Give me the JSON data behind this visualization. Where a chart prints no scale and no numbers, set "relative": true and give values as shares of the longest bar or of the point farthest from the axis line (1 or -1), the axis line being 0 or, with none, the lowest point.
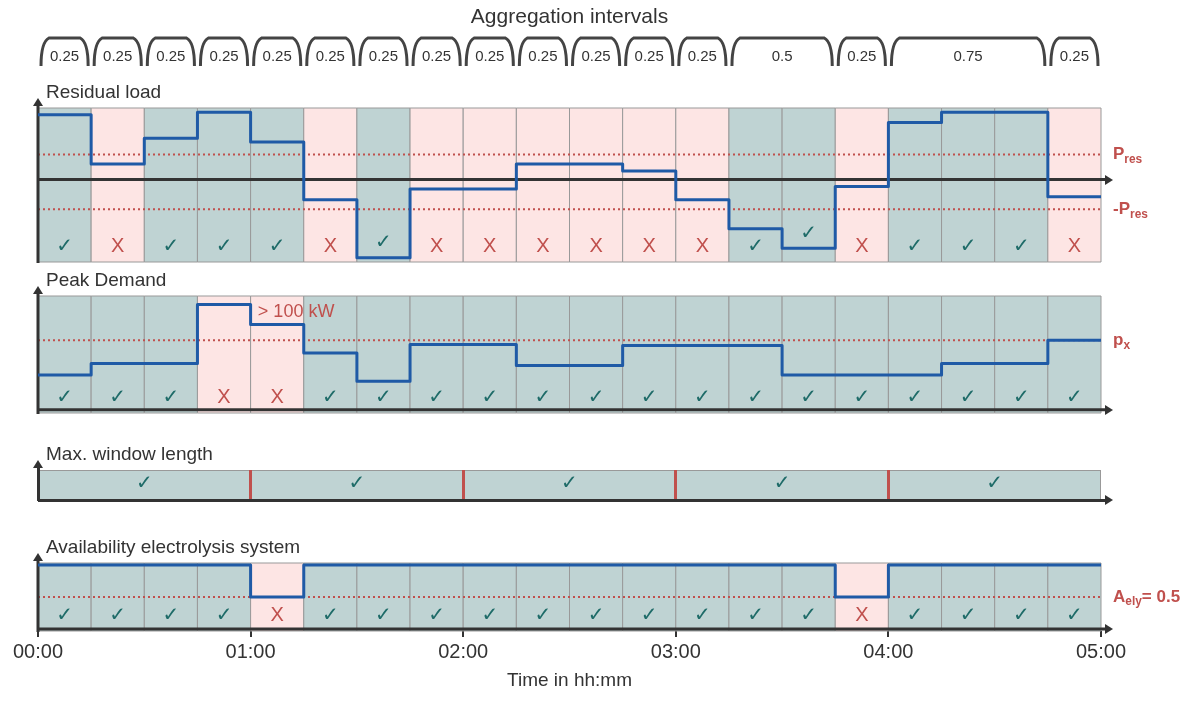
{
  "chart_data": [
    {
      "type": "other",
      "title": "Aggregation intervals",
      "values": [
        0.25,
        0.25,
        0.25,
        0.25,
        0.25,
        0.25,
        0.25,
        0.25,
        0.25,
        0.25,
        0.25,
        0.25,
        0.25,
        0.5,
        0.25,
        0.75,
        0.25
      ],
      "data_labels": true
    },
    {
      "type": "step",
      "title": "Residual load",
      "relative": true,
      "xlim": [
        0,
        5
      ],
      "tick_labels": false,
      "x": [
        0,
        0.25,
        0.5,
        0.75,
        1,
        1.25,
        1.5,
        1.75,
        2,
        2.25,
        2.5,
        2.75,
        3,
        3.25,
        3.5,
        3.75,
        4,
        4.25,
        4.5,
        4.75,
        5
      ],
      "series": [
        {
          "color": "#1f5aa6",
          "values": [
            0.83,
            0.2,
            0.53,
            0.86,
            0.48,
            -0.26,
            -1,
            -0.12,
            -0.12,
            0.2,
            0.2,
            0.11,
            -0.26,
            -0.63,
            -0.88,
            -0.09,
            0.73,
            0.86,
            0.86,
            -0.22,
            -0.22
          ]
        }
      ],
      "ref_lines": [
        {
          "axis": "y",
          "value": 0.32,
          "label": "P$_{res}$",
          "color": "#c0504d",
          "line_style": "dotted"
        },
        {
          "axis": "y",
          "value": -0.38,
          "label": "-P$_{res}$",
          "color": "#c0504d",
          "line_style": "dotted"
        }
      ],
      "bands": [
        {
          "axis": "x",
          "from": 0,
          "to": 0.25,
          "label": "✓",
          "color": "#bfd3d3"
        },
        {
          "axis": "x",
          "from": 0.25,
          "to": 0.5,
          "label": "X",
          "color": "#fde5e4"
        },
        {
          "axis": "x",
          "from": 0.5,
          "to": 0.75,
          "label": "✓",
          "color": "#bfd3d3"
        },
        {
          "axis": "x",
          "from": 0.75,
          "to": 1,
          "label": "✓",
          "color": "#bfd3d3"
        },
        {
          "axis": "x",
          "from": 1,
          "to": 1.25,
          "label": "✓",
          "color": "#bfd3d3"
        },
        {
          "axis": "x",
          "from": 1.25,
          "to": 1.5,
          "label": "X",
          "color": "#fde5e4"
        },
        {
          "axis": "x",
          "from": 1.5,
          "to": 1.75,
          "label": "✓",
          "color": "#bfd3d3"
        },
        {
          "axis": "x",
          "from": 1.75,
          "to": 2,
          "label": "X",
          "color": "#fde5e4"
        },
        {
          "axis": "x",
          "from": 2,
          "to": 2.25,
          "label": "X",
          "color": "#fde5e4"
        },
        {
          "axis": "x",
          "from": 2.25,
          "to": 2.5,
          "label": "X",
          "color": "#fde5e4"
        },
        {
          "axis": "x",
          "from": 2.5,
          "to": 2.75,
          "label": "X",
          "color": "#fde5e4"
        },
        {
          "axis": "x",
          "from": 2.75,
          "to": 3,
          "label": "X",
          "color": "#fde5e4"
        },
        {
          "axis": "x",
          "from": 3,
          "to": 3.25,
          "label": "X",
          "color": "#fde5e4"
        },
        {
          "axis": "x",
          "from": 3.25,
          "to": 3.5,
          "label": "✓",
          "color": "#bfd3d3"
        },
        {
          "axis": "x",
          "from": 3.5,
          "to": 3.75,
          "label": "✓",
          "color": "#bfd3d3"
        },
        {
          "axis": "x",
          "from": 3.75,
          "to": 4,
          "label": "X",
          "color": "#fde5e4"
        },
        {
          "axis": "x",
          "from": 4,
          "to": 4.25,
          "label": "✓",
          "color": "#bfd3d3"
        },
        {
          "axis": "x",
          "from": 4.25,
          "to": 4.5,
          "label": "✓",
          "color": "#bfd3d3"
        },
        {
          "axis": "x",
          "from": 4.5,
          "to": 4.75,
          "label": "✓",
          "color": "#bfd3d3"
        },
        {
          "axis": "x",
          "from": 4.75,
          "to": 5,
          "label": "X",
          "color": "#fde5e4"
        }
      ]
    },
    {
      "type": "step",
      "title": "Peak Demand",
      "relative": true,
      "xlim": [
        0,
        5
      ],
      "tick_labels": false,
      "x": [
        0,
        0.25,
        0.5,
        0.75,
        1,
        1.25,
        1.5,
        1.75,
        2,
        2.25,
        2.5,
        2.75,
        3,
        3.25,
        3.5,
        3.75,
        4,
        4.25,
        4.5,
        4.75,
        5
      ],
      "series": [
        {
          "color": "#1f5aa6",
          "values": [
            0.33,
            0.44,
            0.44,
            1,
            0.81,
            0.54,
            0.27,
            0.62,
            0.62,
            0.42,
            0.42,
            0.61,
            0.61,
            0.61,
            0.33,
            0.33,
            0.33,
            0.44,
            0.44,
            0.66,
            0.66
          ]
        }
      ],
      "ref_lines": [
        {
          "axis": "y",
          "value": 0.66,
          "label": "p$_{x}$",
          "color": "#c0504d",
          "line_style": "dotted"
        }
      ],
      "annotations": [
        {
          "text": "> 100 kW",
          "x": 1.02,
          "y": 0.93
        }
      ],
      "bands": [
        {
          "axis": "x",
          "from": 0,
          "to": 0.25,
          "label": "✓",
          "color": "#bfd3d3"
        },
        {
          "axis": "x",
          "from": 0.25,
          "to": 0.5,
          "label": "✓",
          "color": "#bfd3d3"
        },
        {
          "axis": "x",
          "from": 0.5,
          "to": 0.75,
          "label": "✓",
          "color": "#bfd3d3"
        },
        {
          "axis": "x",
          "from": 0.75,
          "to": 1,
          "label": "X",
          "color": "#fde5e4"
        },
        {
          "axis": "x",
          "from": 1,
          "to": 1.25,
          "label": "X",
          "color": "#fde5e4"
        },
        {
          "axis": "x",
          "from": 1.25,
          "to": 1.5,
          "label": "✓",
          "color": "#bfd3d3"
        },
        {
          "axis": "x",
          "from": 1.5,
          "to": 1.75,
          "label": "✓",
          "color": "#bfd3d3"
        },
        {
          "axis": "x",
          "from": 1.75,
          "to": 2,
          "label": "✓",
          "color": "#bfd3d3"
        },
        {
          "axis": "x",
          "from": 2,
          "to": 2.25,
          "label": "✓",
          "color": "#bfd3d3"
        },
        {
          "axis": "x",
          "from": 2.25,
          "to": 2.5,
          "label": "✓",
          "color": "#bfd3d3"
        },
        {
          "axis": "x",
          "from": 2.5,
          "to": 2.75,
          "label": "✓",
          "color": "#bfd3d3"
        },
        {
          "axis": "x",
          "from": 2.75,
          "to": 3,
          "label": "✓",
          "color": "#bfd3d3"
        },
        {
          "axis": "x",
          "from": 3,
          "to": 3.25,
          "label": "✓",
          "color": "#bfd3d3"
        },
        {
          "axis": "x",
          "from": 3.25,
          "to": 3.5,
          "label": "✓",
          "color": "#bfd3d3"
        },
        {
          "axis": "x",
          "from": 3.5,
          "to": 3.75,
          "label": "✓",
          "color": "#bfd3d3"
        },
        {
          "axis": "x",
          "from": 3.75,
          "to": 4,
          "label": "✓",
          "color": "#bfd3d3"
        },
        {
          "axis": "x",
          "from": 4,
          "to": 4.25,
          "label": "✓",
          "color": "#bfd3d3"
        },
        {
          "axis": "x",
          "from": 4.25,
          "to": 4.5,
          "label": "✓",
          "color": "#bfd3d3"
        },
        {
          "axis": "x",
          "from": 4.5,
          "to": 4.75,
          "label": "✓",
          "color": "#bfd3d3"
        },
        {
          "axis": "x",
          "from": 4.75,
          "to": 5,
          "label": "✓",
          "color": "#bfd3d3"
        }
      ]
    },
    {
      "type": "other",
      "title": "Max. window length",
      "annotations": [
        "✓",
        "✓",
        "✓",
        "✓",
        "✓"
      ]
    },
    {
      "type": "step",
      "title": "Availability electrolysis system",
      "xlabel": "Time in hh:mm",
      "relative": true,
      "xlim": [
        0,
        5
      ],
      "tick_labels": "x",
      "xticks": [
        {
          "value": 0,
          "label": "00:00"
        },
        {
          "value": 1,
          "label": "01:00"
        },
        {
          "value": 2,
          "label": "02:00"
        },
        {
          "value": 3,
          "label": "03:00"
        },
        {
          "value": 4,
          "label": "04:00"
        },
        {
          "value": 5,
          "label": "05:00"
        }
      ],
      "x": [
        0,
        0.25,
        0.5,
        0.75,
        1,
        1.25,
        1.5,
        1.75,
        2,
        2.25,
        2.5,
        2.75,
        3,
        3.25,
        3.5,
        3.75,
        4,
        4.25,
        4.5,
        4.75,
        5
      ],
      "series": [
        {
          "color": "#1f5aa6",
          "values": [
            1,
            1,
            1,
            1,
            0.5,
            1,
            1,
            1,
            1,
            1,
            1,
            1,
            1,
            1,
            1,
            0.5,
            1,
            1,
            1,
            1,
            1
          ]
        }
      ],
      "ref_lines": [
        {
          "axis": "y",
          "value": 0.5,
          "label": "A$_{ely}$= 0.5",
          "color": "#c0504d",
          "line_style": "dotted"
        }
      ],
      "bands": [
        {
          "axis": "x",
          "from": 0,
          "to": 0.25,
          "label": "✓",
          "color": "#bfd3d3"
        },
        {
          "axis": "x",
          "from": 0.25,
          "to": 0.5,
          "label": "✓",
          "color": "#bfd3d3"
        },
        {
          "axis": "x",
          "from": 0.5,
          "to": 0.75,
          "label": "✓",
          "color": "#bfd3d3"
        },
        {
          "axis": "x",
          "from": 0.75,
          "to": 1,
          "label": "✓",
          "color": "#bfd3d3"
        },
        {
          "axis": "x",
          "from": 1,
          "to": 1.25,
          "label": "X",
          "color": "#fde5e4"
        },
        {
          "axis": "x",
          "from": 1.25,
          "to": 1.5,
          "label": "✓",
          "color": "#bfd3d3"
        },
        {
          "axis": "x",
          "from": 1.5,
          "to": 1.75,
          "label": "✓",
          "color": "#bfd3d3"
        },
        {
          "axis": "x",
          "from": 1.75,
          "to": 2,
          "label": "✓",
          "color": "#bfd3d3"
        },
        {
          "axis": "x",
          "from": 2,
          "to": 2.25,
          "label": "✓",
          "color": "#bfd3d3"
        },
        {
          "axis": "x",
          "from": 2.25,
          "to": 2.5,
          "label": "✓",
          "color": "#bfd3d3"
        },
        {
          "axis": "x",
          "from": 2.5,
          "to": 2.75,
          "label": "✓",
          "color": "#bfd3d3"
        },
        {
          "axis": "x",
          "from": 2.75,
          "to": 3,
          "label": "✓",
          "color": "#bfd3d3"
        },
        {
          "axis": "x",
          "from": 3,
          "to": 3.25,
          "label": "✓",
          "color": "#bfd3d3"
        },
        {
          "axis": "x",
          "from": 3.25,
          "to": 3.5,
          "label": "✓",
          "color": "#bfd3d3"
        },
        {
          "axis": "x",
          "from": 3.5,
          "to": 3.75,
          "label": "✓",
          "color": "#bfd3d3"
        },
        {
          "axis": "x",
          "from": 3.75,
          "to": 4,
          "label": "X",
          "color": "#fde5e4"
        },
        {
          "axis": "x",
          "from": 4,
          "to": 4.25,
          "label": "✓",
          "color": "#bfd3d3"
        },
        {
          "axis": "x",
          "from": 4.25,
          "to": 4.5,
          "label": "✓",
          "color": "#bfd3d3"
        },
        {
          "axis": "x",
          "from": 4.5,
          "to": 4.75,
          "label": "✓",
          "color": "#bfd3d3"
        },
        {
          "axis": "x",
          "from": 4.75,
          "to": 5,
          "label": "✓",
          "color": "#bfd3d3"
        }
      ]
    }
  ]
}
